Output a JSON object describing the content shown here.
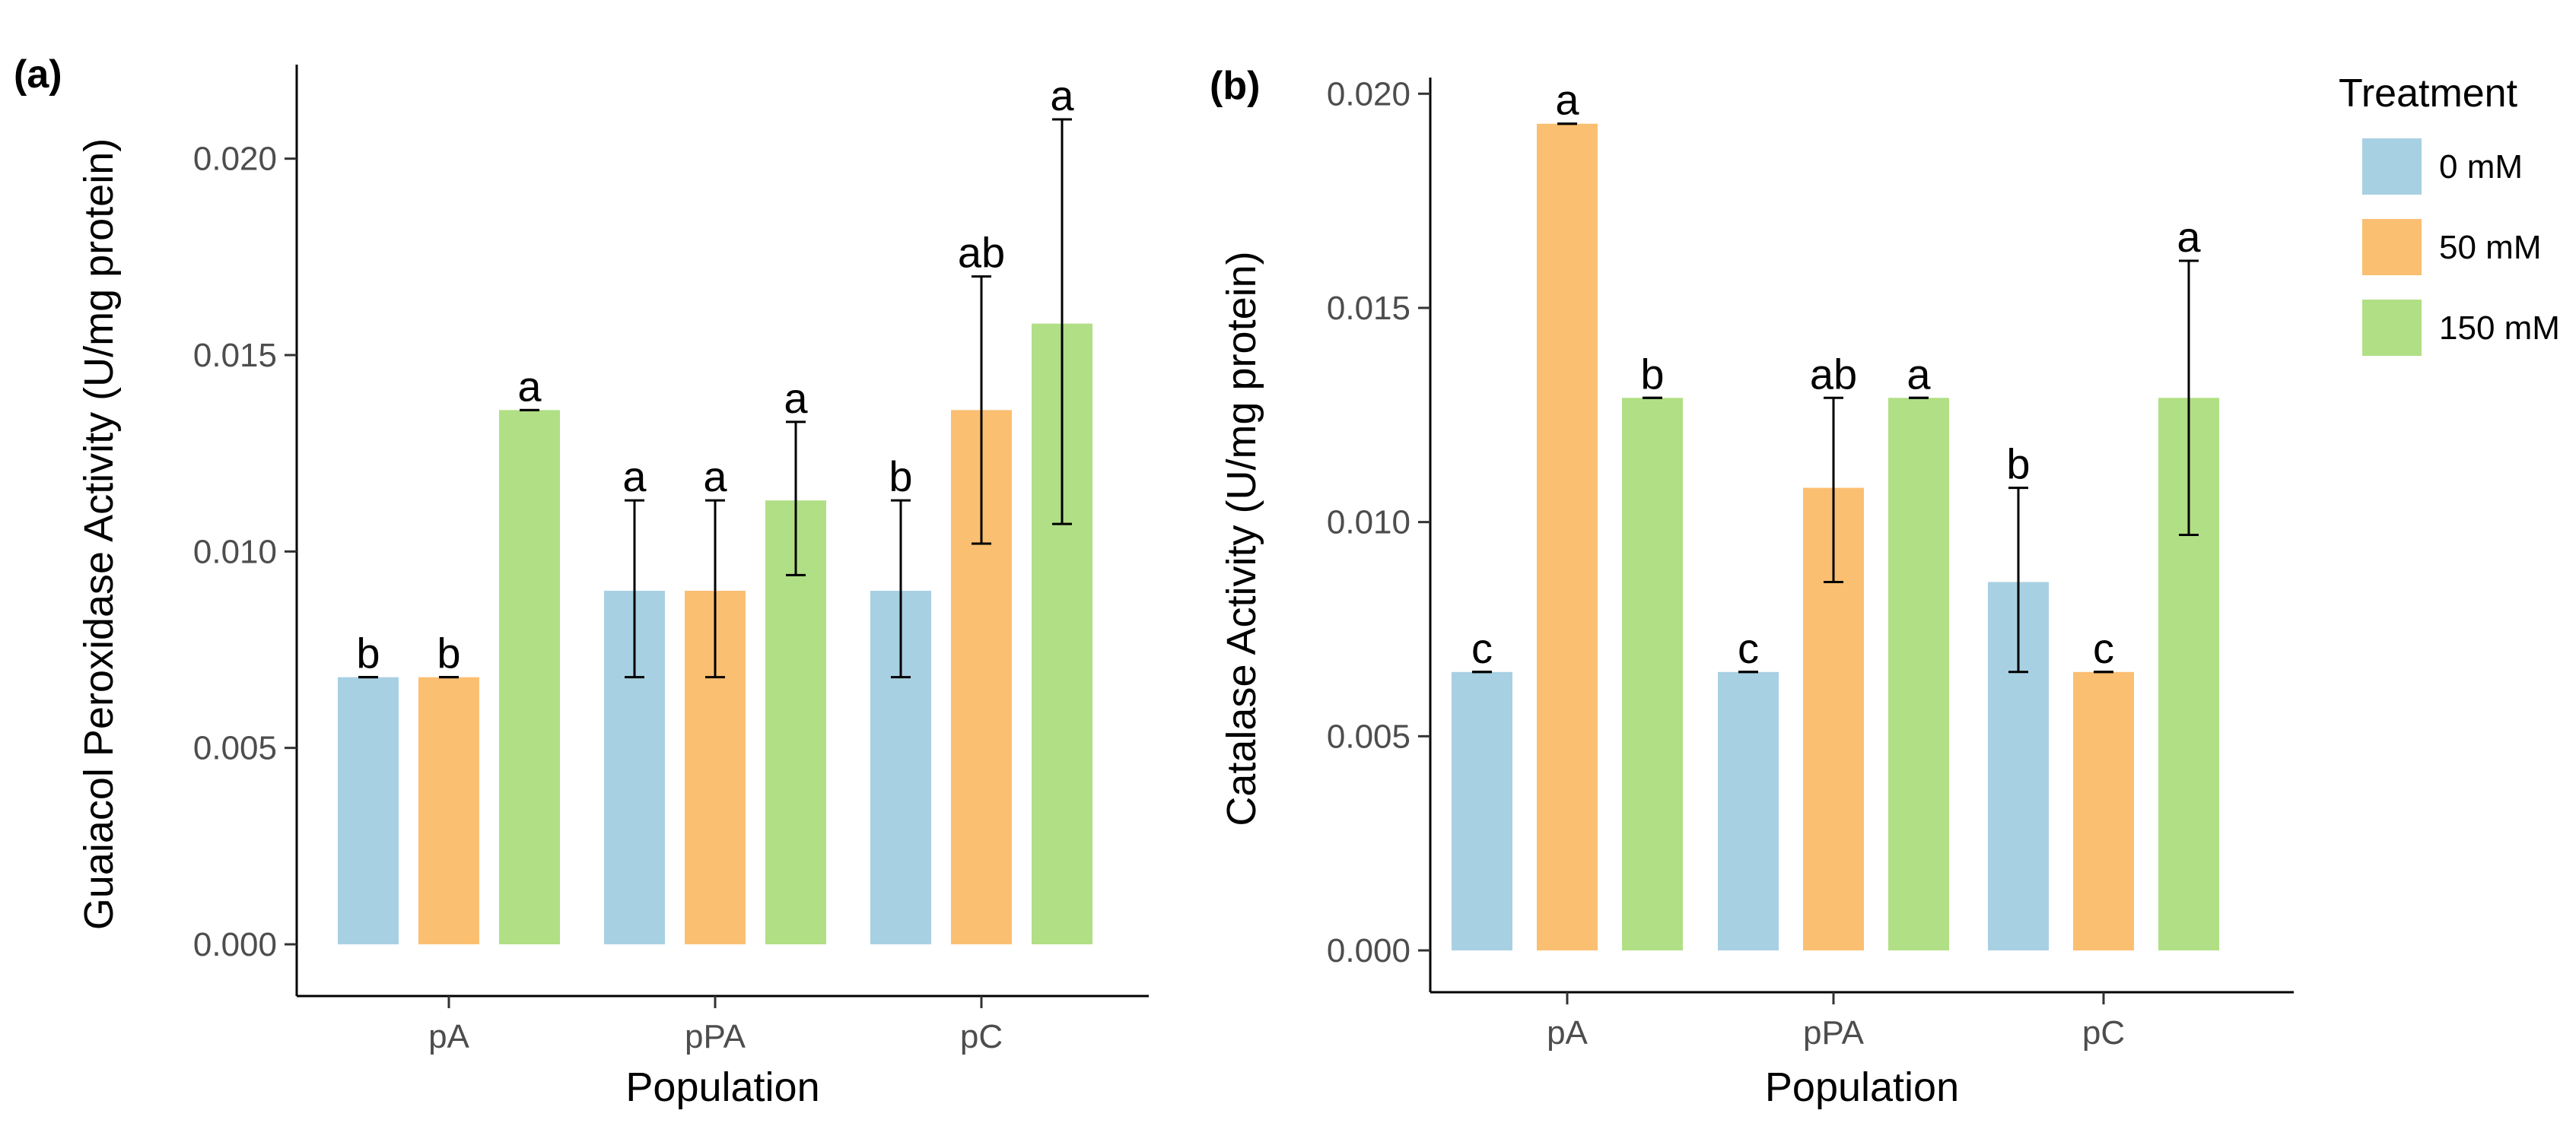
{
  "chart_data": [
    {
      "panel": "(a)",
      "type": "bar",
      "xlabel": "Population",
      "ylabel": "Guaiacol Peroxidase Activity (U/mg protein)",
      "ylim": [
        0,
        0.0222
      ],
      "yticks": [
        "0.000",
        "0.005",
        "0.010",
        "0.015",
        "0.020"
      ],
      "categories": [
        "pA",
        "pPA",
        "pC"
      ],
      "series": [
        {
          "name": "0 mM",
          "values": [
            0.0068,
            0.009,
            0.009
          ],
          "err_low": [
            0.0068,
            0.0068,
            0.0068
          ],
          "err_high": [
            0.0068,
            0.0113,
            0.0113
          ],
          "letters": [
            "b",
            "a",
            "b"
          ]
        },
        {
          "name": "50 mM",
          "values": [
            0.0068,
            0.009,
            0.0136
          ],
          "err_low": [
            0.0068,
            0.0068,
            0.0102
          ],
          "err_high": [
            0.0068,
            0.0113,
            0.017
          ],
          "letters": [
            "b",
            "a",
            "ab"
          ]
        },
        {
          "name": "150 mM",
          "values": [
            0.0136,
            0.0113,
            0.0158
          ],
          "err_low": [
            0.0136,
            0.0094,
            0.0107
          ],
          "err_high": [
            0.0136,
            0.0133,
            0.021
          ],
          "letters": [
            "a",
            "a",
            "a"
          ]
        }
      ]
    },
    {
      "panel": "(b)",
      "type": "bar",
      "xlabel": "Population",
      "ylabel": "Catalase Activity (U/mg protein)",
      "ylim": [
        0,
        0.0202
      ],
      "yticks": [
        "0.000",
        "0.005",
        "0.010",
        "0.015",
        "0.020"
      ],
      "categories": [
        "pA",
        "pPA",
        "pC"
      ],
      "series": [
        {
          "name": "0 mM",
          "values": [
            0.0065,
            0.0065,
            0.0086
          ],
          "err_low": [
            0.0065,
            0.0065,
            0.0065
          ],
          "err_high": [
            0.0065,
            0.0065,
            0.0108
          ],
          "letters": [
            "c",
            "c",
            "b"
          ]
        },
        {
          "name": "50 mM",
          "values": [
            0.0193,
            0.0108,
            0.0065
          ],
          "err_low": [
            0.0193,
            0.0086,
            0.0065
          ],
          "err_high": [
            0.0193,
            0.0129,
            0.0065
          ],
          "letters": [
            "a",
            "ab",
            "c"
          ]
        },
        {
          "name": "150 mM",
          "values": [
            0.0129,
            0.0129,
            0.0129
          ],
          "err_low": [
            0.0129,
            0.0129,
            0.0097
          ],
          "err_high": [
            0.0129,
            0.0129,
            0.0161
          ],
          "letters": [
            "b",
            "a",
            "a"
          ]
        }
      ]
    }
  ],
  "legend": {
    "title": "Treatment",
    "items": [
      {
        "label": "0 mM",
        "color": "#a8d0e3"
      },
      {
        "label": "50 mM",
        "color": "#fbbf72"
      },
      {
        "label": "150 mM",
        "color": "#b1df85"
      }
    ]
  }
}
